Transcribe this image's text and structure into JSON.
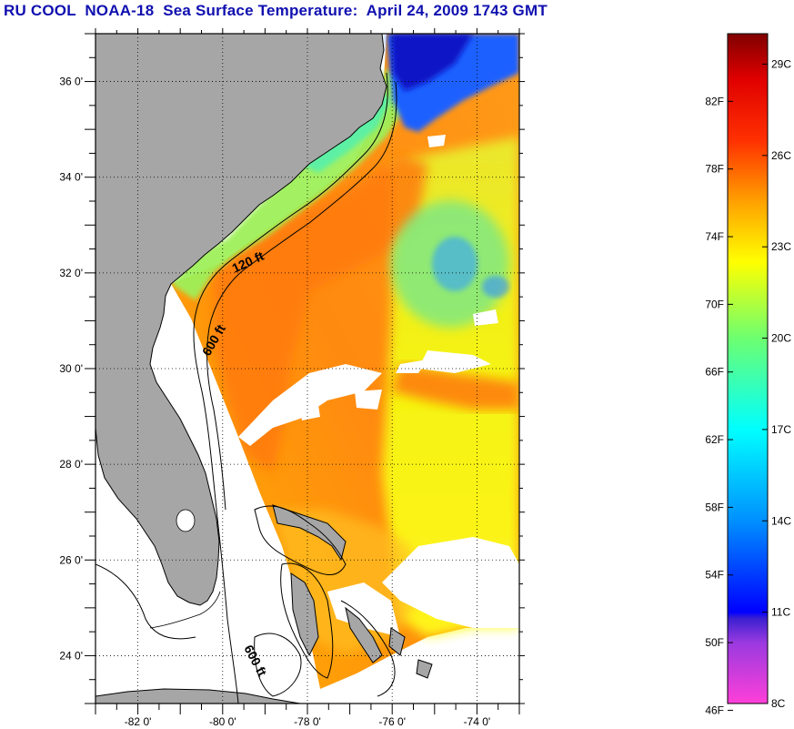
{
  "title": "RU COOL  NOAA-18  Sea Surface Temperature:  April 24, 2009 1743 GMT",
  "map": {
    "lon_min": -83,
    "lon_max": -73,
    "lat_min": 23,
    "lat_max": 37,
    "lon_ticks": [
      {
        "value": -82,
        "label": "-82 0'"
      },
      {
        "value": -80,
        "label": "-80 0'"
      },
      {
        "value": -78,
        "label": "-78 0'"
      },
      {
        "value": -76,
        "label": "-76 0'"
      },
      {
        "value": -74,
        "label": "-74 0'"
      }
    ],
    "lat_ticks": [
      {
        "value": 24,
        "label": "24 0'"
      },
      {
        "value": 26,
        "label": "26 0'"
      },
      {
        "value": 28,
        "label": "28 0'"
      },
      {
        "value": 30,
        "label": "30 0'"
      },
      {
        "value": 32,
        "label": "32 0'"
      },
      {
        "value": 34,
        "label": "34 0'"
      },
      {
        "value": 36,
        "label": "36 0'"
      }
    ],
    "grid": "dotted",
    "contour_labels": [
      "120 ft",
      "600 ft",
      "600 ft"
    ],
    "colors": {
      "land": "#a6a6a6",
      "no_data": "#ffffff",
      "contour": "#000000"
    }
  },
  "colorbar": {
    "min_c": 8,
    "max_c": 30,
    "celsius_ticks": [
      {
        "value": 8,
        "label": "8C"
      },
      {
        "value": 11,
        "label": "11C"
      },
      {
        "value": 14,
        "label": "14C"
      },
      {
        "value": 17,
        "label": "17C"
      },
      {
        "value": 20,
        "label": "20C"
      },
      {
        "value": 23,
        "label": "23C"
      },
      {
        "value": 26,
        "label": "26C"
      },
      {
        "value": 29,
        "label": "29C"
      }
    ],
    "fahrenheit_ticks": [
      {
        "value": 46,
        "label": "46F"
      },
      {
        "value": 50,
        "label": "50F"
      },
      {
        "value": 54,
        "label": "54F"
      },
      {
        "value": 58,
        "label": "58F"
      },
      {
        "value": 62,
        "label": "62F"
      },
      {
        "value": 66,
        "label": "66F"
      },
      {
        "value": 70,
        "label": "70F"
      },
      {
        "value": 74,
        "label": "74F"
      },
      {
        "value": 78,
        "label": "78F"
      },
      {
        "value": 82,
        "label": "82F"
      }
    ],
    "stops": [
      {
        "c": 8,
        "color": "#ff3fd8"
      },
      {
        "c": 10,
        "color": "#9a3ae0"
      },
      {
        "c": 10.8,
        "color": "#3a20d0"
      },
      {
        "c": 11,
        "color": "#0000ff"
      },
      {
        "c": 14,
        "color": "#0090ff"
      },
      {
        "c": 17,
        "color": "#00ffff"
      },
      {
        "c": 20,
        "color": "#6dff70"
      },
      {
        "c": 22.5,
        "color": "#ffff00"
      },
      {
        "c": 24.5,
        "color": "#ffa000"
      },
      {
        "c": 26.5,
        "color": "#ff3000"
      },
      {
        "c": 28.5,
        "color": "#e00000"
      },
      {
        "c": 30,
        "color": "#800000"
      }
    ]
  }
}
